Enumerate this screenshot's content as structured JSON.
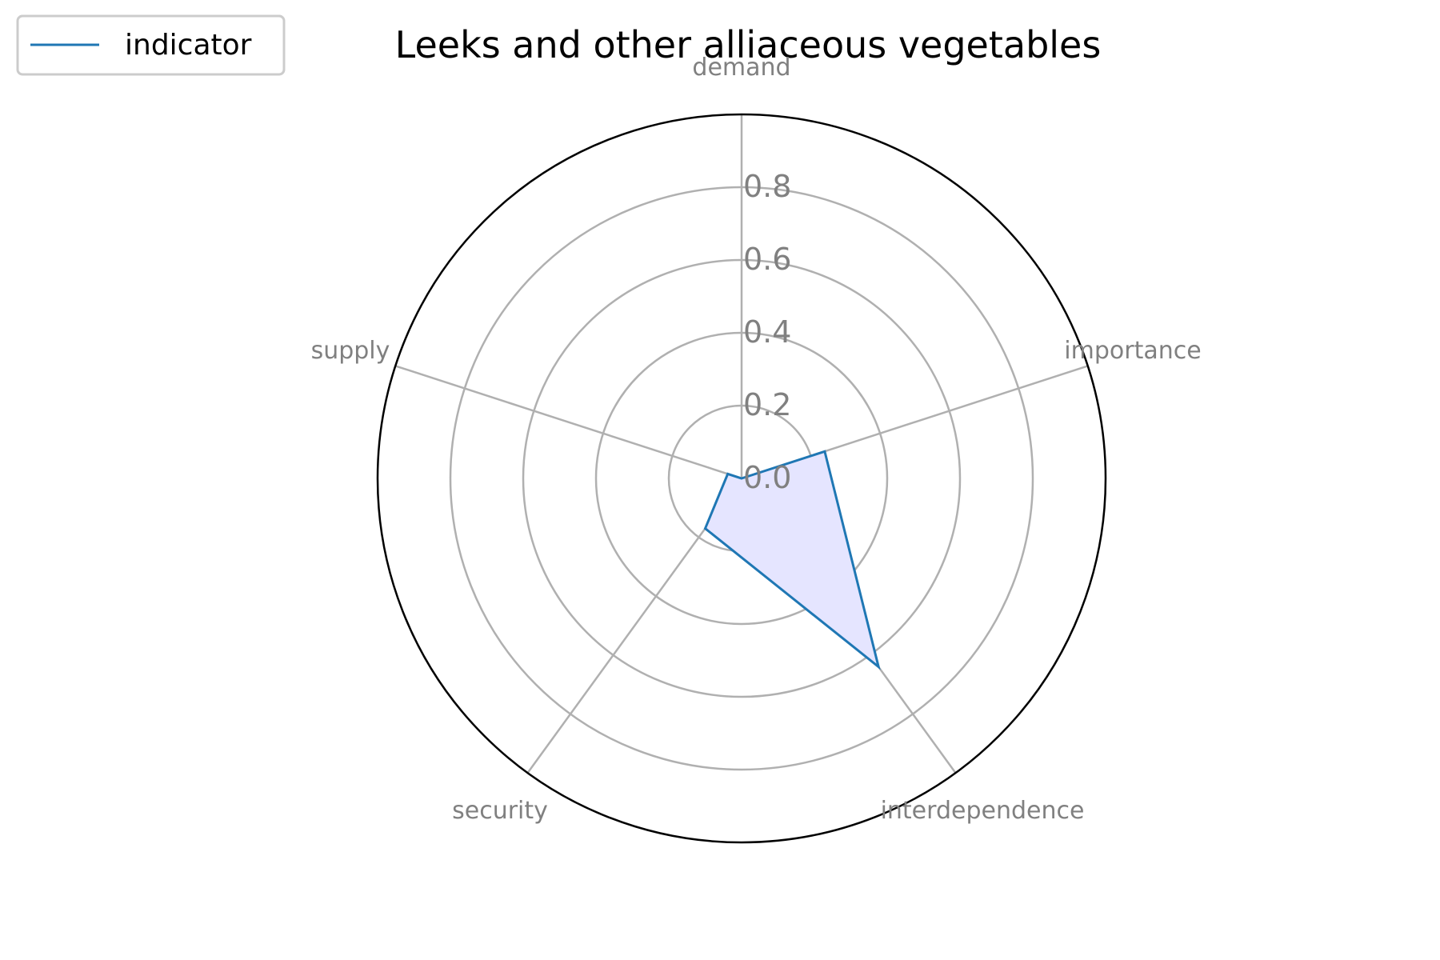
{
  "chart_data": {
    "type": "radar",
    "title": "Leeks and other alliaceous vegetables",
    "categories": [
      "demand",
      "importance",
      "interdependence",
      "security",
      "supply"
    ],
    "series": [
      {
        "name": "indicator",
        "values": [
          0.0,
          0.24,
          0.64,
          0.17,
          0.04
        ]
      }
    ],
    "rlim": [
      0,
      1.0
    ],
    "rticks": [
      0.0,
      0.2,
      0.4,
      0.6,
      0.8
    ],
    "rtick_labels": [
      "0.0",
      "0.2",
      "0.4",
      "0.6",
      "0.8"
    ],
    "grid": true,
    "legend": "top-left",
    "colors": {
      "line": "#1f77b4",
      "fill": "#e5e5ff",
      "grid": "#b0b0b0",
      "frame": "#000000",
      "label": "#808080"
    }
  }
}
